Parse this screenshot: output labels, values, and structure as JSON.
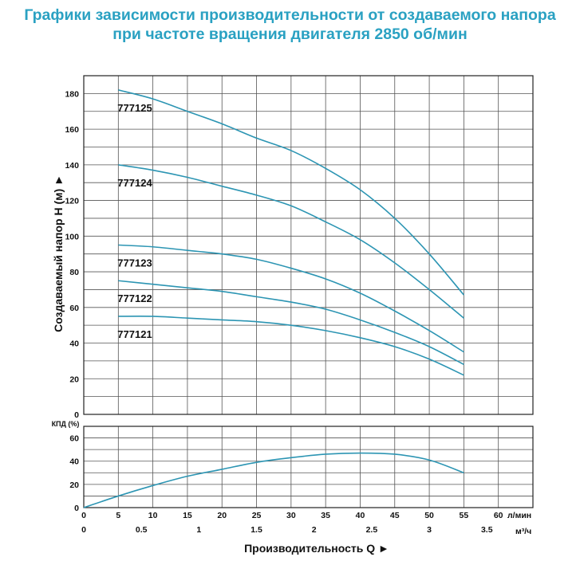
{
  "title_line1": "Графики зависимости производительности от создаваемого напора",
  "title_line2": "при частоте вращения двигателя 2850 об/мин",
  "colors": {
    "curve": "#2c95b3",
    "grid": "#555555",
    "title": "#2aa1c2"
  },
  "chart_data": [
    {
      "type": "line",
      "ylabel": "Создаваемый напор H (м) ►",
      "ylim": [
        0,
        190
      ],
      "yticks": [
        0,
        20,
        40,
        60,
        80,
        100,
        120,
        140,
        160,
        180
      ],
      "xlim": [
        0,
        65
      ],
      "grid": true,
      "x": [
        5,
        10,
        15,
        20,
        25,
        30,
        35,
        40,
        45,
        50,
        55
      ],
      "series": [
        {
          "name": "777125",
          "values": [
            182,
            177,
            170,
            163,
            155,
            148,
            138,
            126,
            110,
            90,
            67
          ]
        },
        {
          "name": "777124",
          "values": [
            140,
            137,
            133,
            128,
            123,
            117,
            108,
            98,
            85,
            70,
            54
          ]
        },
        {
          "name": "777123",
          "values": [
            95,
            94,
            92,
            90,
            87,
            82,
            76,
            68,
            58,
            47,
            35
          ]
        },
        {
          "name": "777122",
          "values": [
            75,
            73,
            71,
            69,
            66,
            63,
            59,
            53,
            46,
            38,
            28
          ]
        },
        {
          "name": "777121",
          "values": [
            55,
            55,
            54,
            53,
            52,
            50,
            47,
            43,
            38,
            31,
            22
          ]
        }
      ]
    },
    {
      "type": "line",
      "ylabel": "КПД (%)",
      "ylim": [
        0,
        70
      ],
      "yticks": [
        0,
        20,
        40,
        60
      ],
      "grid": true,
      "x": [
        0,
        5,
        10,
        15,
        20,
        25,
        30,
        35,
        40,
        45,
        50,
        55
      ],
      "series": [
        {
          "name": "",
          "values": [
            0,
            10,
            19,
            27,
            33,
            39,
            43,
            46,
            47,
            46,
            41,
            30
          ]
        }
      ],
      "xticks_lmin": [
        "0",
        "5",
        "10",
        "15",
        "20",
        "25",
        "30",
        "35",
        "40",
        "45",
        "50",
        "55",
        "60"
      ],
      "xunit_lmin": "л/мин",
      "xticks_m3h": [
        "0",
        "0.5",
        "1",
        "1.5",
        "2",
        "2.5",
        "3",
        "3.5"
      ],
      "xunit_m3h": "м³/ч",
      "xlabel": "Производительность Q ►"
    }
  ]
}
